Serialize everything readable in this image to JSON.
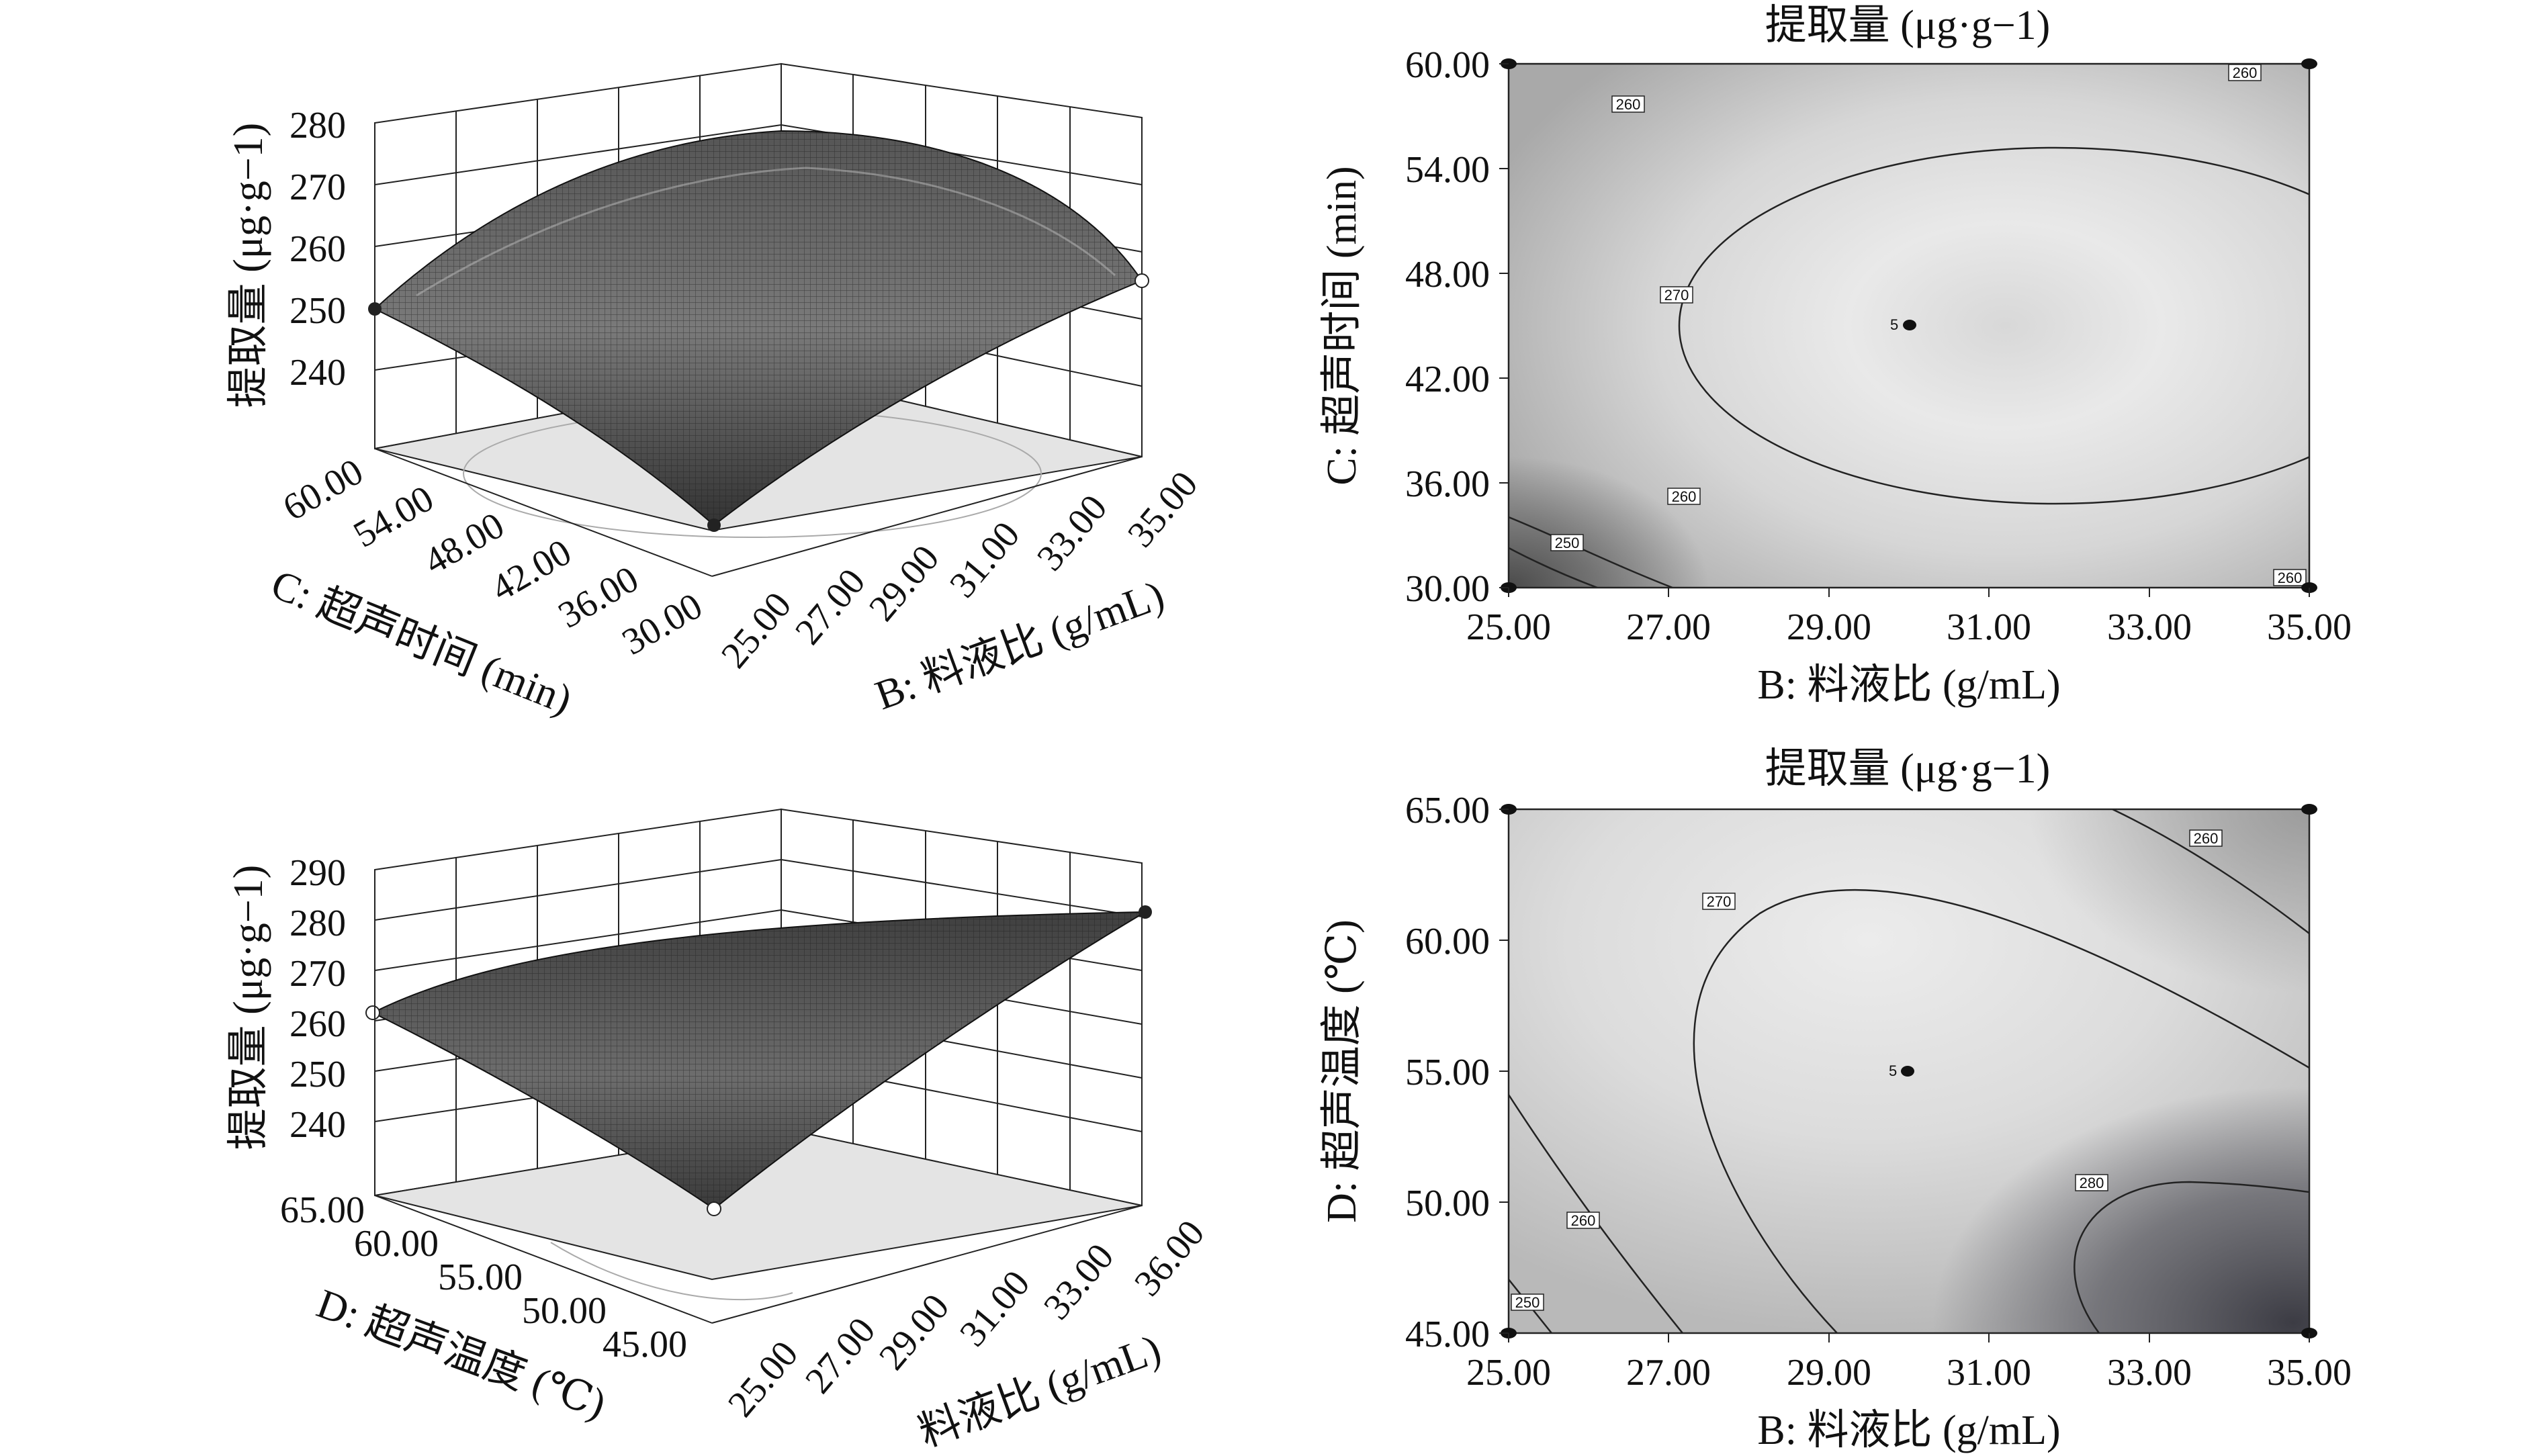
{
  "chart_data": [
    {
      "type": "surface3d",
      "panel": "top-left",
      "xlabel": "B: 料液比 (g/mL)",
      "ylabel": "C: 超声时间 (min)",
      "zlabel": "提取量 (μg·g−1)",
      "x_ticks": [
        "25.00",
        "27.00",
        "29.00",
        "31.00",
        "33.00",
        "35.00"
      ],
      "y_ticks": [
        "30.00",
        "36.00",
        "42.00",
        "48.00",
        "54.00",
        "60.00"
      ],
      "z_ticks": [
        "240",
        "250",
        "260",
        "270",
        "280"
      ],
      "xlim": [
        25,
        35
      ],
      "ylim": [
        30,
        60
      ],
      "zlim": [
        233,
        280
      ],
      "corner_points": [
        {
          "x": 25,
          "y": 30,
          "z": 233
        },
        {
          "x": 25,
          "y": 60,
          "z": 250
        },
        {
          "x": 35,
          "y": 30,
          "z": 255
        },
        {
          "x": 35,
          "y": 60,
          "z": 258
        }
      ],
      "peak": {
        "x": 30.5,
        "y": 47,
        "z": 277
      },
      "grid": true
    },
    {
      "type": "contour",
      "panel": "top-right",
      "title": "提取量 (μg·g−1)",
      "xlabel": "B: 料液比 (g/mL)",
      "ylabel": "C: 超声时间 (min)",
      "x_ticks": [
        "25.00",
        "27.00",
        "29.00",
        "31.00",
        "33.00",
        "35.00"
      ],
      "y_ticks": [
        "30.00",
        "36.00",
        "42.00",
        "48.00",
        "54.00",
        "60.00"
      ],
      "xlim": [
        25,
        35
      ],
      "ylim": [
        30,
        60
      ],
      "center": {
        "x": 30,
        "y": 45,
        "label": "5"
      },
      "optimum": {
        "x": 31.5,
        "y": 45
      },
      "contour_levels": [
        {
          "level": 250,
          "label": "250"
        },
        {
          "level": 260,
          "label": "260"
        },
        {
          "level": 270,
          "label": "270"
        }
      ]
    },
    {
      "type": "surface3d",
      "panel": "bottom-left",
      "xlabel": "料液比 (g/mL)",
      "ylabel": "D: 超声温度 (℃)",
      "zlabel": "提取量 (μg·g−1)",
      "x_ticks": [
        "25.00",
        "27.00",
        "29.00",
        "31.00",
        "33.00",
        "36.00"
      ],
      "y_ticks": [
        "45.00",
        "50.00",
        "55.00",
        "60.00",
        "65.00"
      ],
      "z_ticks": [
        "240",
        "250",
        "260",
        "270",
        "280",
        "290"
      ],
      "xlim": [
        25,
        36
      ],
      "ylim": [
        45,
        65
      ],
      "zlim": [
        233,
        290
      ],
      "corner_points": [
        {
          "x": 25,
          "y": 45,
          "z": 234
        },
        {
          "x": 25,
          "y": 65,
          "z": 262
        },
        {
          "x": 36,
          "y": 45,
          "z": 283
        },
        {
          "x": 36,
          "y": 65,
          "z": 258
        }
      ],
      "grid": true
    },
    {
      "type": "contour",
      "panel": "bottom-right",
      "title": "提取量 (μg·g−1)",
      "xlabel": "B: 料液比 (g/mL)",
      "ylabel": "D: 超声温度 (℃)",
      "x_ticks": [
        "25.00",
        "27.00",
        "29.00",
        "31.00",
        "33.00",
        "35.00"
      ],
      "y_ticks": [
        "45.00",
        "50.00",
        "55.00",
        "60.00",
        "65.00"
      ],
      "xlim": [
        25,
        35
      ],
      "ylim": [
        45,
        65
      ],
      "center": {
        "x": 30,
        "y": 55,
        "label": "5"
      },
      "contour_levels": [
        {
          "level": 250,
          "label": "250"
        },
        {
          "level": 260,
          "label": "260"
        },
        {
          "level": 270,
          "label": "270"
        },
        {
          "level": 280,
          "label": "280"
        }
      ]
    }
  ]
}
